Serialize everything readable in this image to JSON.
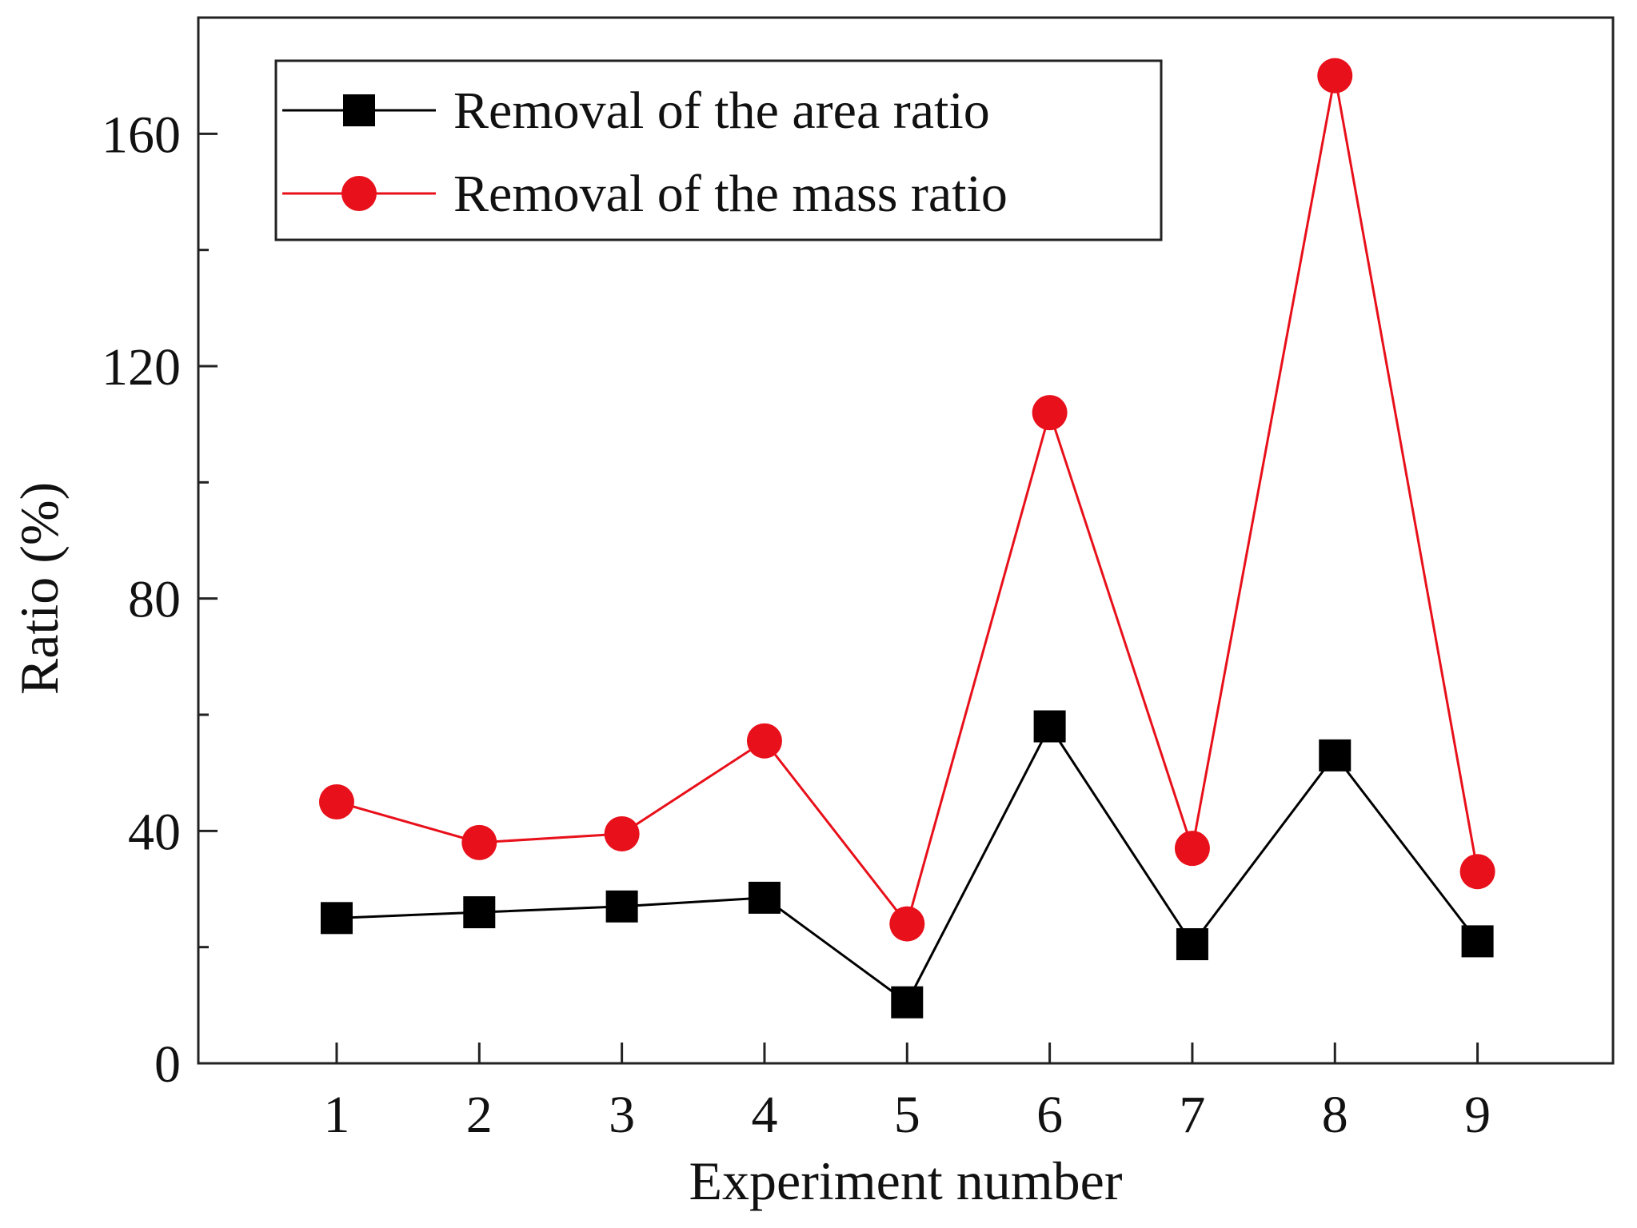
{
  "chart_data": {
    "type": "line",
    "title": "",
    "xlabel": "Experiment number",
    "ylabel": "Ratio (%)",
    "categories": [
      "1",
      "2",
      "3",
      "4",
      "5",
      "6",
      "7",
      "8",
      "9"
    ],
    "x": [
      1,
      2,
      3,
      4,
      5,
      6,
      7,
      8,
      9
    ],
    "xlim": [
      0.03,
      9.95
    ],
    "ylim": [
      0,
      180
    ],
    "yticks": [
      0,
      40,
      80,
      120,
      160
    ],
    "ytick_labels": [
      "0",
      "40",
      "80",
      "120",
      "160"
    ],
    "grid": false,
    "legend_position": "top-left",
    "series": [
      {
        "name": "Removal of the area ratio",
        "marker": "square",
        "color": "#000000",
        "values": [
          25,
          26,
          27,
          28.5,
          10.5,
          58,
          20.5,
          53,
          21
        ]
      },
      {
        "name": "Removal of the mass ratio",
        "marker": "circle",
        "color": "#e8101a",
        "values": [
          45,
          38,
          39.5,
          55.5,
          24,
          112,
          37,
          170,
          33
        ]
      }
    ]
  }
}
